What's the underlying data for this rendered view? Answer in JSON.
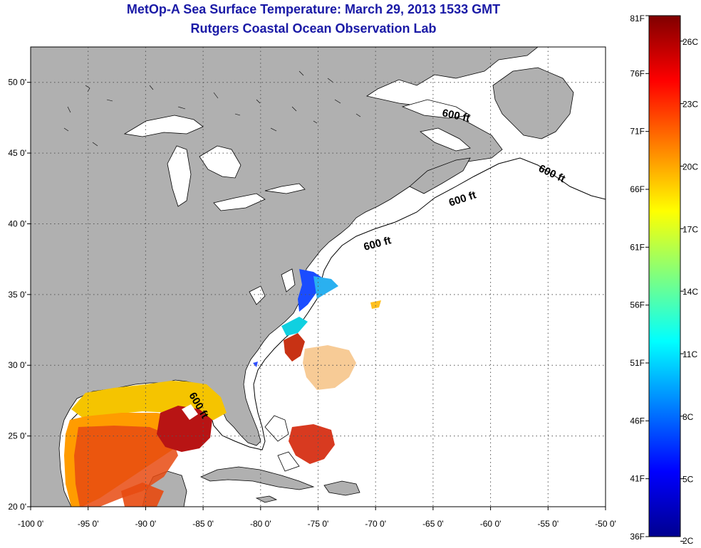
{
  "header": {
    "title": "MetOp-A Sea Surface Temperature:  March 29, 2013 1533 GMT",
    "subtitle": "Rutgers Coastal Ocean Observation Lab"
  },
  "map": {
    "lon_range": [
      -100,
      -50
    ],
    "lat_range": [
      20,
      52.5
    ],
    "lon_ticks": [
      "-100 0'",
      "-95 0'",
      "-90 0'",
      "-85 0'",
      "-80 0'",
      "-75 0'",
      "-70 0'",
      "-65 0'",
      "-60 0'",
      "-55 0'",
      "-50 0'"
    ],
    "lat_ticks": [
      "50 0'",
      "45 0'",
      "40 0'",
      "35 0'",
      "30 0'",
      "25 0'",
      "20 0'"
    ],
    "contour_labels": [
      "600 ft",
      "600 ft",
      "600 ft",
      "600 ft",
      "600 ft"
    ],
    "land_color": "#b0b0b0",
    "water_color": "#ffffff"
  },
  "colorbar": {
    "f_labels": [
      "81F",
      "76F",
      "71F",
      "66F",
      "61F",
      "56F",
      "51F",
      "46F",
      "41F",
      "36F"
    ],
    "c_labels": [
      "26C",
      "23C",
      "20C",
      "17C",
      "14C",
      "11C",
      "8C",
      "5C",
      "2C"
    ],
    "colormap": "jet"
  }
}
